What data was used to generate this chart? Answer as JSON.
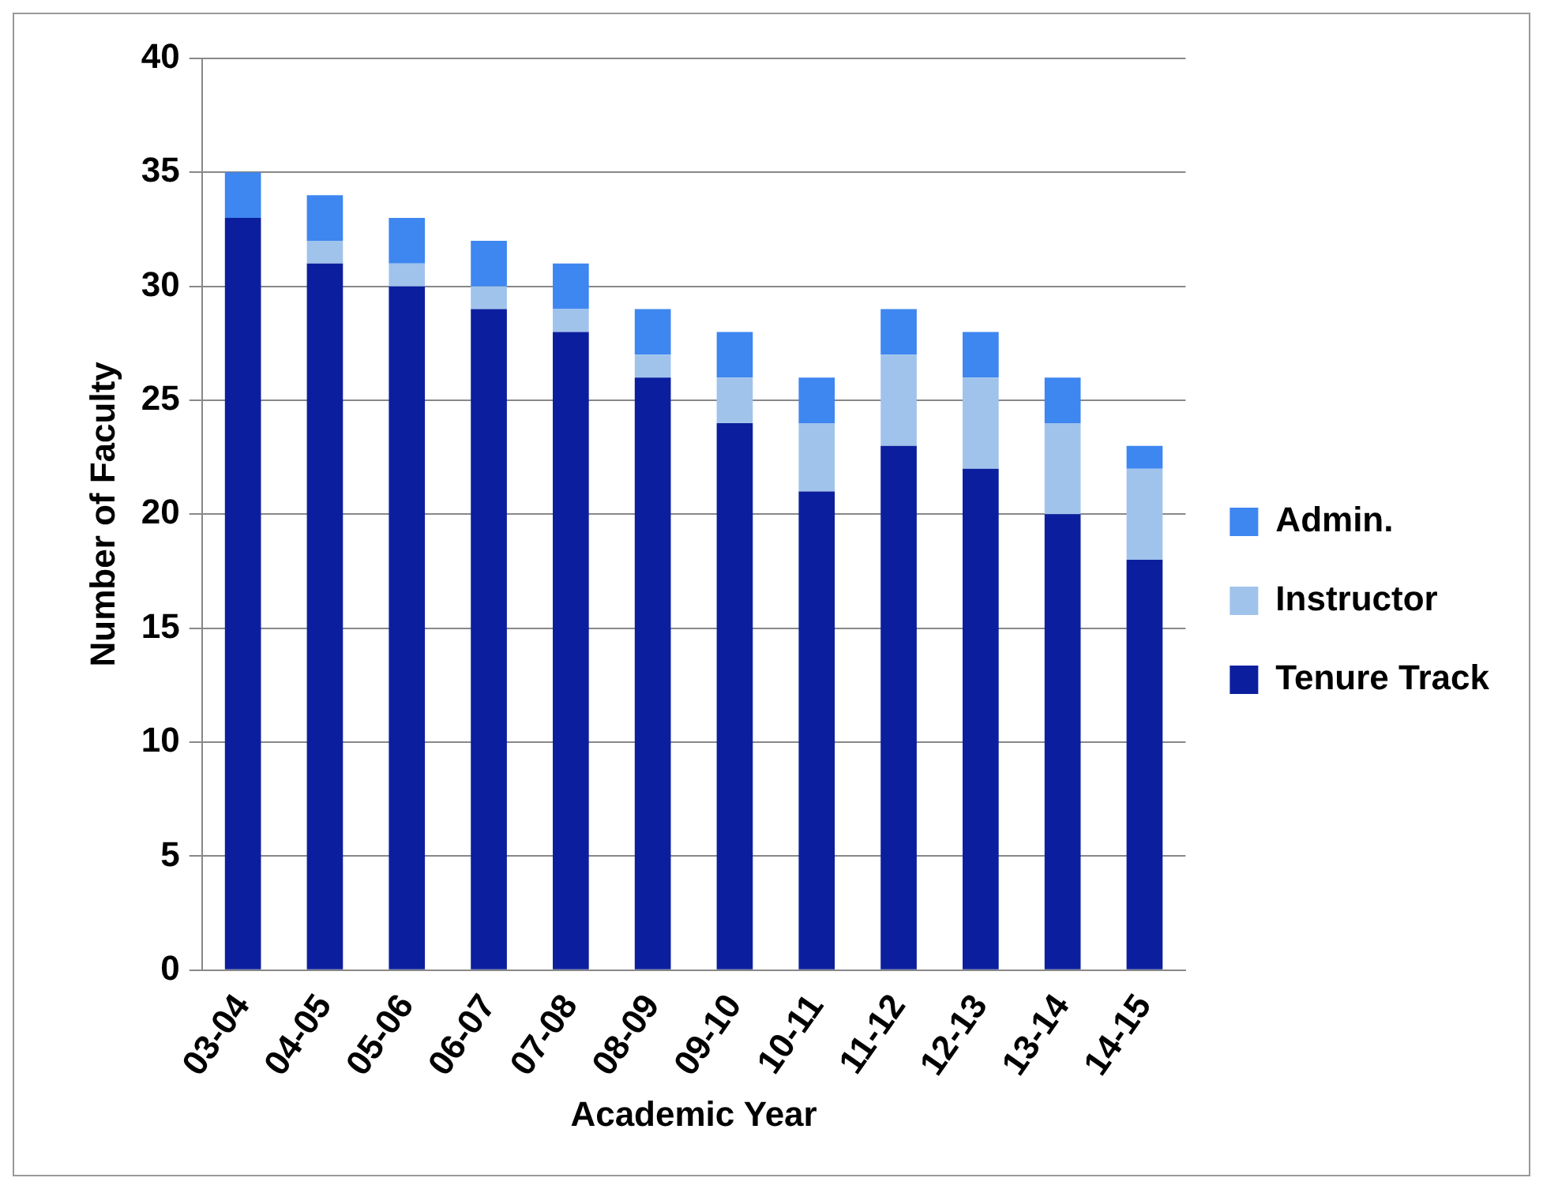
{
  "chart_data": {
    "type": "bar",
    "stacked": true,
    "categories": [
      "03-04",
      "04-05",
      "05-06",
      "06-07",
      "07-08",
      "08-09",
      "09-10",
      "10-11",
      "11-12",
      "12-13",
      "13-14",
      "14-15"
    ],
    "series": [
      {
        "name": "Tenure Track",
        "color": "#0b1f9e",
        "values": [
          33,
          31,
          30,
          29,
          28,
          26,
          24,
          21,
          23,
          22,
          20,
          18
        ]
      },
      {
        "name": "Instructor",
        "color": "#a0c3ec",
        "values": [
          0,
          1,
          1,
          1,
          1,
          1,
          2,
          3,
          4,
          4,
          4,
          4
        ]
      },
      {
        "name": "Admin.",
        "color": "#3e86f0",
        "values": [
          2,
          2,
          2,
          2,
          2,
          2,
          2,
          2,
          2,
          2,
          2,
          1
        ]
      }
    ],
    "xlabel": "Academic Year",
    "ylabel": "Number of Faculty",
    "ylim": [
      0,
      40
    ],
    "yticks": [
      0,
      5,
      10,
      15,
      20,
      25,
      30,
      35,
      40
    ],
    "grid": "y",
    "legend": "right"
  }
}
